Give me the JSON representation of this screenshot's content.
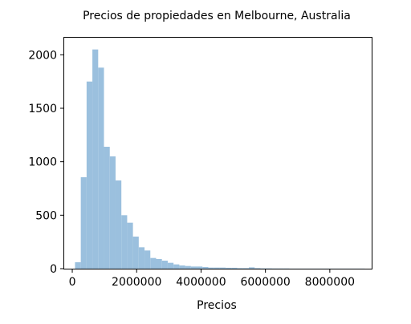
{
  "chart_data": {
    "type": "bar",
    "title": "Precios de propiedades en Melbourne, Australia",
    "xlabel": "Precios",
    "ylabel": "",
    "bar_color": "#9bc0de",
    "xlim": [
      -250000,
      9300000
    ],
    "ylim": [
      0,
      2160
    ],
    "xticks": [
      {
        "value": 0,
        "label": "0"
      },
      {
        "value": 2000000,
        "label": "2000000"
      },
      {
        "value": 4000000,
        "label": "4000000"
      },
      {
        "value": 6000000,
        "label": "6000000"
      },
      {
        "value": 8000000,
        "label": "8000000"
      }
    ],
    "yticks": [
      {
        "value": 0,
        "label": "0"
      },
      {
        "value": 500,
        "label": "500"
      },
      {
        "value": 1000,
        "label": "1000"
      },
      {
        "value": 1500,
        "label": "1500"
      },
      {
        "value": 2000,
        "label": "2000"
      }
    ],
    "bin_start": 85000,
    "bin_width": 180000,
    "values": [
      60,
      855,
      1750,
      2050,
      1880,
      1140,
      1050,
      825,
      500,
      430,
      300,
      200,
      170,
      100,
      90,
      75,
      55,
      40,
      30,
      25,
      20,
      20,
      15,
      10,
      10,
      10,
      8,
      8,
      5,
      5,
      12,
      5,
      3,
      3,
      2,
      2,
      2,
      1,
      1,
      1,
      1,
      1,
      1,
      1,
      1,
      1,
      1,
      1,
      1,
      1
    ]
  }
}
